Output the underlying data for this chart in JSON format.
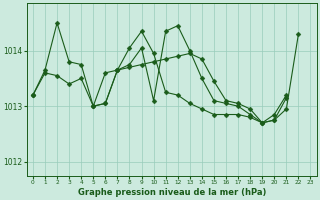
{
  "title": "Graphe pression niveau de la mer (hPa)",
  "bg_color": "#cceade",
  "grid_color": "#99ccbb",
  "line_color": "#1a5c1a",
  "ylim": [
    1011.75,
    1014.85
  ],
  "yticks": [
    1012,
    1013,
    1014
  ],
  "xticks": [
    0,
    1,
    2,
    3,
    4,
    5,
    6,
    7,
    8,
    9,
    10,
    11,
    12,
    13,
    14,
    15,
    16,
    17,
    18,
    19,
    20,
    21,
    22,
    23
  ],
  "line1": [
    1013.2,
    1013.65,
    1014.5,
    1013.8,
    1013.75,
    1013.0,
    1013.05,
    1013.65,
    1013.75,
    1014.05,
    1013.1,
    1014.35,
    1014.45,
    1014.0,
    1013.5,
    1013.1,
    1013.05,
    1013.0,
    1012.85,
    1012.7,
    1012.85,
    1013.2,
    null,
    null
  ],
  "line2": [
    1013.2,
    1013.6,
    1013.55,
    1013.4,
    1013.5,
    1013.0,
    1013.05,
    1013.65,
    1013.7,
    1013.75,
    1013.8,
    1013.85,
    1013.9,
    1013.95,
    1013.85,
    1013.45,
    1013.1,
    1013.05,
    1012.95,
    1012.7,
    1012.75,
    1013.15,
    null,
    null
  ],
  "line3": [
    null,
    null,
    null,
    null,
    null,
    null,
    null,
    1013.65,
    1014.05,
    1014.35,
    1013.95,
    1013.25,
    1013.2,
    1013.05,
    1012.95,
    1012.85,
    1012.85,
    1012.85,
    1012.8,
    1012.7,
    1012.75,
    1012.95,
    1014.3,
    null
  ],
  "line4": [
    1013.2,
    null,
    null,
    null,
    null,
    1013.0,
    1013.6,
    1013.65,
    null,
    null,
    null,
    null,
    null,
    null,
    null,
    null,
    null,
    null,
    null,
    null,
    null,
    null,
    null,
    null
  ]
}
